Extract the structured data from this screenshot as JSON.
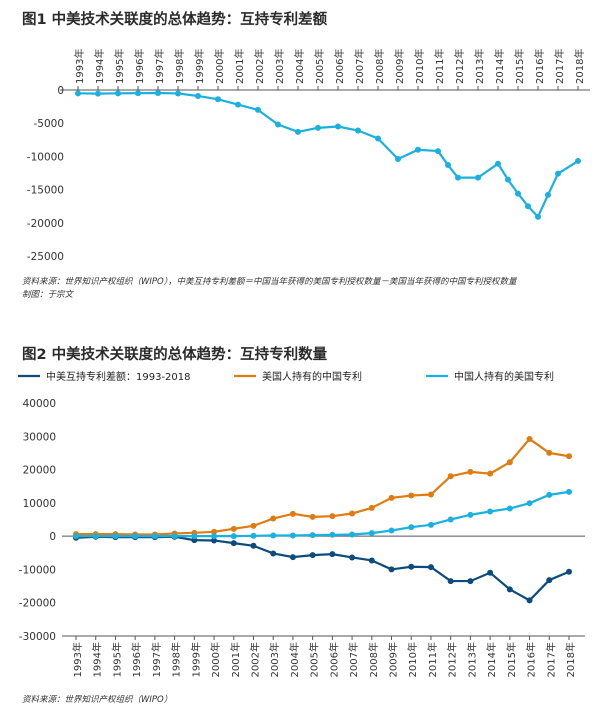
{
  "chart_data": [
    {
      "type": "line",
      "title": "图1  中美技术关联度的总体趋势：互持专利差额",
      "x": [
        "1993年",
        "1994年",
        "1995年",
        "1996年",
        "1997年",
        "1998年",
        "1999年",
        "2000年",
        "2001年",
        "2002年",
        "2003年",
        "2004年",
        "2005年",
        "2006年",
        "2007年",
        "2008年",
        "2009年",
        "2010年",
        "2011年",
        "2012年",
        "2013年",
        "2014年",
        "2015年",
        "2016年",
        "2017年",
        "2018年"
      ],
      "x_positions_note": "",
      "series": [
        {
          "name": "",
          "color": "#1ab0df",
          "x": [
            1993,
            1994,
            1995,
            1996,
            1997,
            1998,
            1999,
            2000,
            2001,
            2002,
            2003,
            2004,
            2005,
            2006,
            2007,
            2008,
            2009,
            2010,
            2011,
            2011.5,
            2012,
            2013,
            2014,
            2014.5,
            2015,
            2015.5,
            2016,
            2016.5,
            2017,
            2018
          ],
          "values": [
            -500,
            -550,
            -500,
            -480,
            -450,
            -520,
            -900,
            -1400,
            -2200,
            -3000,
            -5200,
            -6300,
            -5700,
            -5500,
            -6100,
            -7300,
            -10400,
            -9000,
            -9200,
            -11300,
            -13200,
            -13200,
            -11100,
            -13500,
            -15600,
            -17500,
            -19100,
            -15800,
            -12600,
            -10700
          ]
        }
      ],
      "xlabel": "",
      "ylabel": "",
      "ylim": [
        -25000,
        0
      ],
      "yticks": [
        "0",
        "-5000",
        "-10000",
        "-15000",
        "-20000",
        "-25000"
      ],
      "ytick_values": [
        0,
        -5000,
        -10000,
        -15000,
        -20000,
        -25000
      ],
      "grid": false,
      "xaxis_position": "top"
    },
    {
      "type": "line",
      "title": "图2  中美技术关联度的总体趋势：互持专利数量",
      "x": [
        "1993年",
        "1994年",
        "1995年",
        "1996年",
        "1997年",
        "1998年",
        "1999年",
        "2000年",
        "2001年",
        "2002年",
        "2003年",
        "2004年",
        "2005年",
        "2006年",
        "2007年",
        "2008年",
        "2009年",
        "2010年",
        "2011年",
        "2012年",
        "2013年",
        "2014年",
        "2015年",
        "2016年",
        "2017年",
        "2018年"
      ],
      "series": [
        {
          "name": "中美互持专利差额：1993-2018",
          "color": "#0d4a7e",
          "values": [
            -500,
            -200,
            -300,
            -300,
            -300,
            -200,
            -1200,
            -1300,
            -2100,
            -2900,
            -5200,
            -6300,
            -5700,
            -5400,
            -6400,
            -7300,
            -10000,
            -9200,
            -9300,
            -13500,
            -13500,
            -11000,
            -16000,
            -19300,
            -13200,
            -10700
          ]
        },
        {
          "name": "美国人持有的中国专利",
          "color": "#e07b12",
          "values": [
            600,
            600,
            600,
            500,
            500,
            800,
            1000,
            1300,
            2200,
            3100,
            5300,
            6700,
            5800,
            6000,
            6800,
            8500,
            11500,
            12200,
            12500,
            18000,
            19300,
            18800,
            22200,
            29200,
            25000,
            24000
          ]
        },
        {
          "name": "中国人持有的美国专利",
          "color": "#1ab0df",
          "values": [
            0,
            0,
            0,
            0,
            0,
            0,
            0,
            0,
            0,
            100,
            200,
            200,
            300,
            400,
            500,
            900,
            1700,
            2700,
            3400,
            5000,
            6400,
            7400,
            8300,
            9900,
            12400,
            13300
          ]
        }
      ],
      "xlabel": "",
      "ylabel": "",
      "ylim": [
        -30000,
        40000
      ],
      "yticks": [
        "40000",
        "30000",
        "20000",
        "10000",
        "0",
        "-10000",
        "-20000",
        "-30000"
      ],
      "ytick_values": [
        40000,
        30000,
        20000,
        10000,
        0,
        -10000,
        -20000,
        -30000
      ],
      "grid": false,
      "legend": "top"
    }
  ],
  "source1_line1": "资料来源：世界知识产权组织（WIPO），中美互持专利差额＝中国当年获得的美国专利授权数量－美国当年获得的中国专利授权数量",
  "source1_line2": "制图：于宗文",
  "source2": "资料来源：世界知识产权组织（WIPO）"
}
